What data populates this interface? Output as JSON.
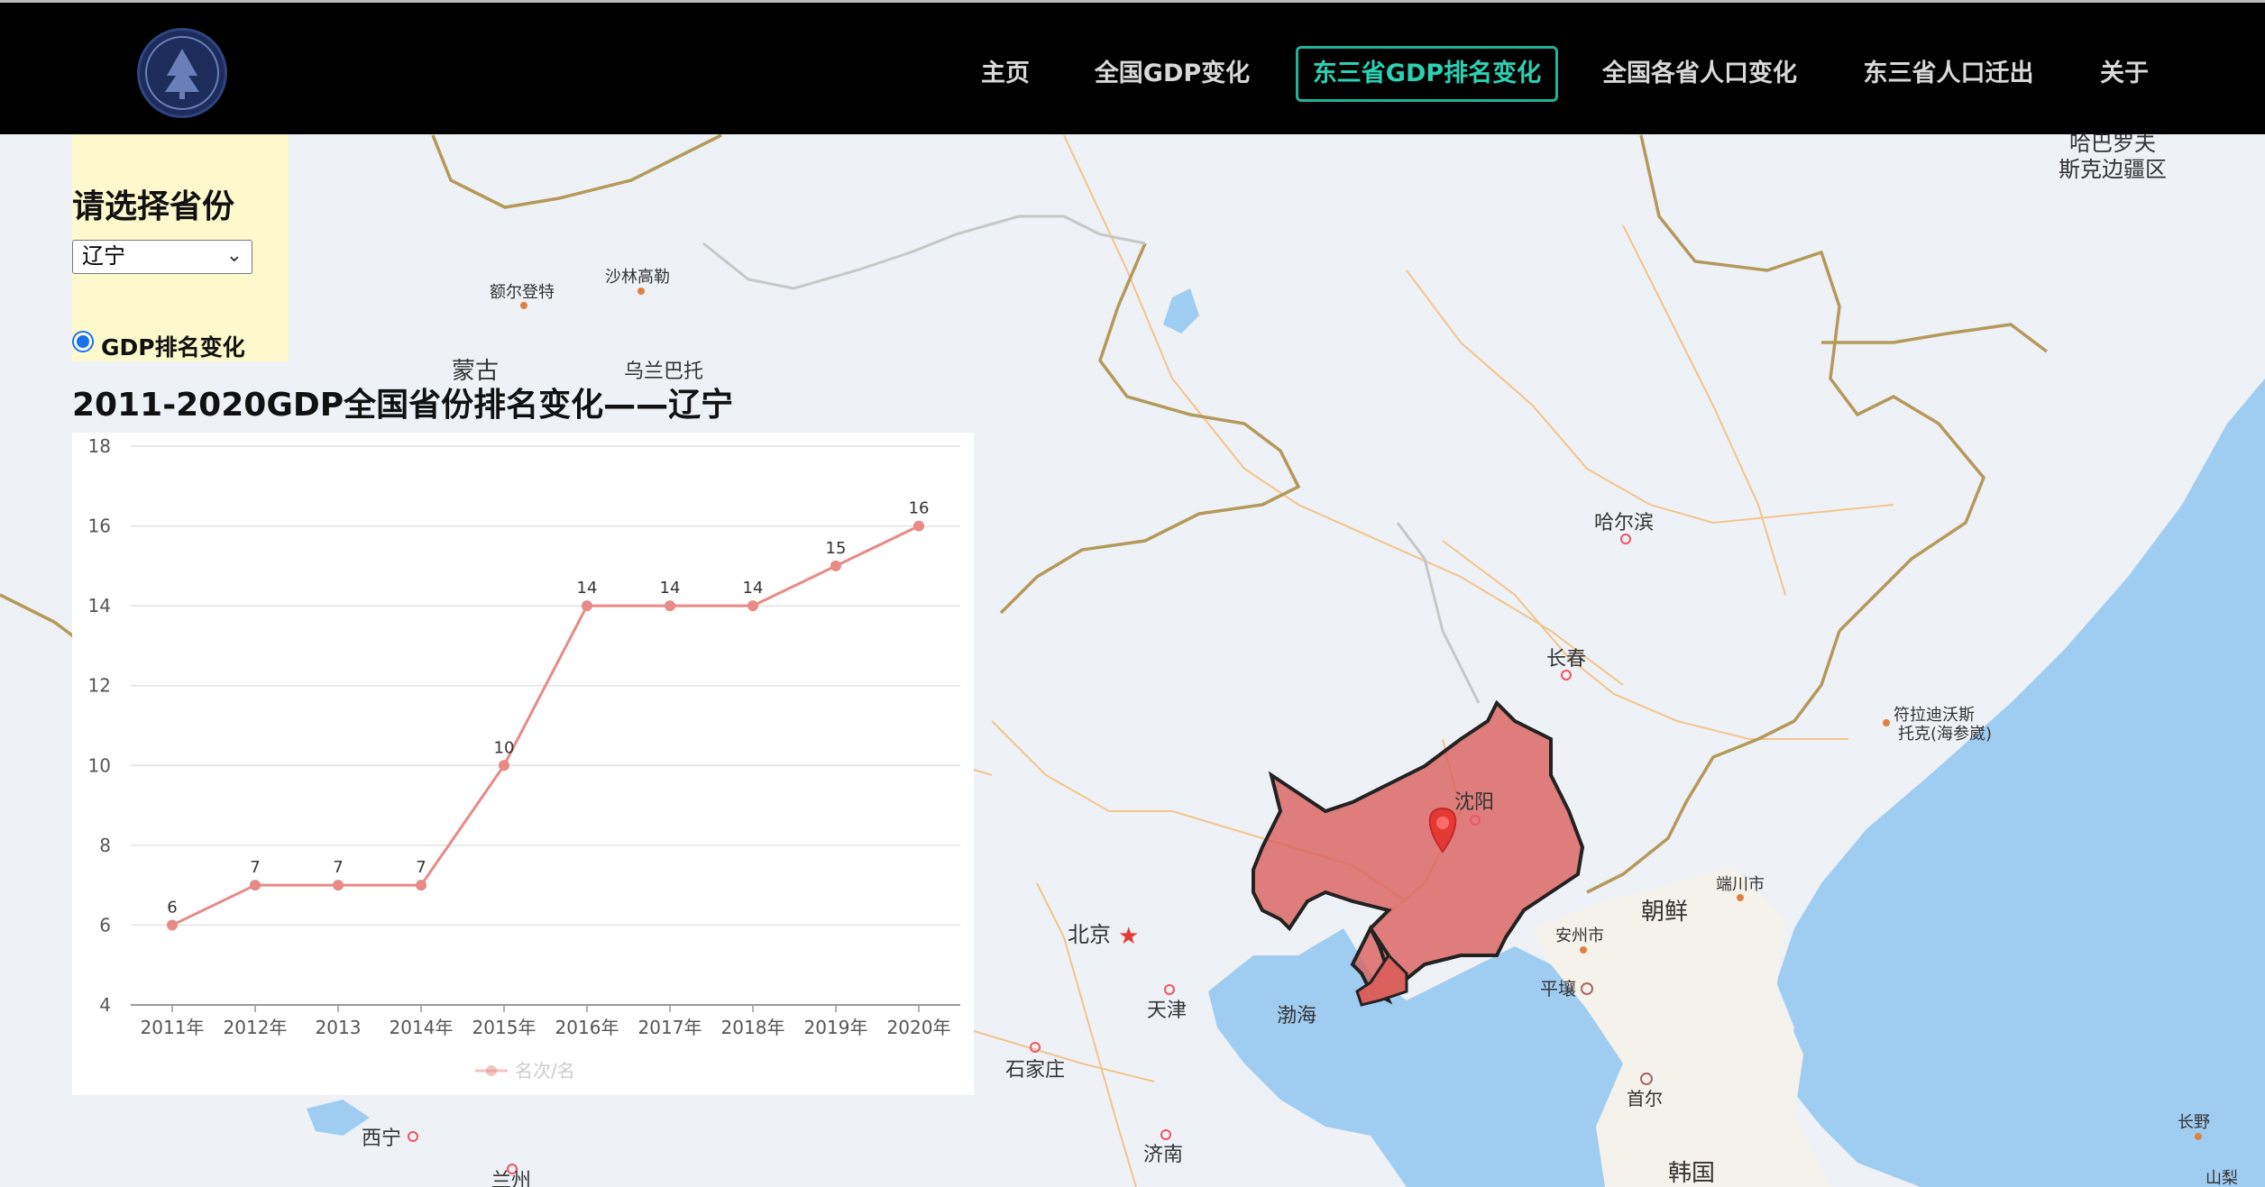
{
  "nav": {
    "logo_icon": "university-seal-icon",
    "items": [
      {
        "label": "主页"
      },
      {
        "label": "全国GDP变化"
      },
      {
        "label": "东三省GDP排名变化",
        "active": true
      },
      {
        "label": "全国各省人口变化"
      },
      {
        "label": "东三省人口迁出"
      },
      {
        "label": "关于"
      }
    ],
    "active_color": "#1fb39a"
  },
  "sidebar": {
    "title": "请选择省份",
    "select_value": "辽宁",
    "radio_label": "GDP排名变化"
  },
  "map": {
    "highlight_color": "#d9534f",
    "marker_icon": "map-pin-icon",
    "labels": {
      "haerbin": "哈尔滨",
      "changchun": "长春",
      "shenyang": "沈阳",
      "beijing": "北京",
      "tianjin": "天津",
      "shijiazhuang": "石家庄",
      "jinan": "济南",
      "xining": "西宁",
      "lanzhou": "兰州",
      "bohai": "渤海",
      "chaoxian": "朝鲜",
      "hanguo": "韩国",
      "shouer": "首尔",
      "pingrang": "平壤",
      "anzhou": "安州市",
      "duanchuan": "端川市",
      "fuladi": "符拉迪沃斯",
      "fuladi2": "托克(海参崴)",
      "haba": "哈巴罗夫",
      "haba2": "斯克边疆区",
      "eerdengte": "额尔登特",
      "shalin": "沙林高勒",
      "menggu": "蒙古",
      "wulanbatuo": "乌兰巴托",
      "changye": "长野",
      "shanli": "山梨"
    }
  },
  "chart": {
    "title": "2011-2020GDP全国省份排名变化——辽宁"
  },
  "chart_data": {
    "type": "line",
    "title": "2011-2020GDP全国省份排名变化——辽宁",
    "categories": [
      "2011年",
      "2012年",
      "2013",
      "2014年",
      "2015年",
      "2016年",
      "2017年",
      "2018年",
      "2019年",
      "2020年"
    ],
    "series": [
      {
        "name": "名次/名",
        "values": [
          6,
          7,
          7,
          7,
          10,
          14,
          14,
          14,
          15,
          16
        ],
        "color": "#e88a86"
      }
    ],
    "ylim": [
      4,
      18
    ],
    "yticks": [
      4,
      6,
      8,
      10,
      12,
      14,
      16,
      18
    ],
    "grid": true,
    "legend": "bottom"
  }
}
